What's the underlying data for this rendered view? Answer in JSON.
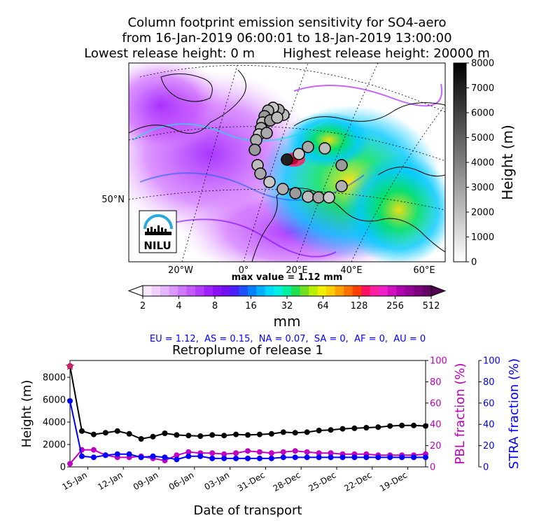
{
  "title": {
    "line1": "Column footprint emission sensitivity for SO4-aero",
    "line2": "from 16-Jan-2019 06:00:01 to 18-Jan-2019 13:00:00",
    "line3": "Lowest release height: 0 m       Highest release height: 20000 m"
  },
  "map": {
    "lon_labels": [
      "20°W",
      "0°",
      "20°E",
      "40°E",
      "60°E"
    ],
    "lat_labels": [
      "50°N"
    ],
    "logo_text": "NILU",
    "max_value": "max value = 1.12 mm"
  },
  "height_colorbar": {
    "label": "Height (m)",
    "ticks": [
      "0",
      "1000",
      "2000",
      "3000",
      "4000",
      "5000",
      "6000",
      "7000",
      "8000"
    ]
  },
  "emission_colorbar": {
    "label": "mm",
    "ticks": [
      "2",
      "4",
      "8",
      "16",
      "32",
      "64",
      "128",
      "256",
      "512"
    ]
  },
  "summary": "EU = 1.12,  AS = 0.15,  NA = 0.07,  SA = 0,  AF = 0,  AU = 0",
  "colors": {
    "height": "#000000",
    "pbl": "#c000c0",
    "stra": "#0000ff",
    "marker": "#d62070"
  },
  "chart_data": {
    "type": "line",
    "title": "Retroplume of release 1",
    "xlabel": "Date of transport",
    "ylabel": "Height (m)",
    "ylabel_right1": "PBL fraction (%)",
    "ylabel_right2": "STRA fraction (%)",
    "ylim": [
      0,
      9500
    ],
    "ylim_right": [
      0,
      100
    ],
    "x_tick_labels": [
      "15-Jan",
      "12-Jan",
      "09-Jan",
      "06-Jan",
      "03-Jan",
      "31-Dec",
      "28-Dec",
      "25-Dec",
      "22-Dec",
      "19-Dec"
    ],
    "x_tick_days_ago": [
      1,
      4,
      7,
      10,
      13,
      16,
      19,
      22,
      25,
      28
    ],
    "y_ticks": [
      "0",
      "2000",
      "4000",
      "6000",
      "8000"
    ],
    "y_ticks_right": [
      "0",
      "20",
      "40",
      "60",
      "80",
      "100"
    ],
    "series": [
      {
        "name": "Height",
        "axis": "left",
        "days_ago": [
          -0.5,
          0.5,
          1.5,
          2.5,
          3.5,
          4.5,
          5.5,
          6.5,
          7.5,
          8.5,
          9.5,
          10.5,
          11.5,
          12.5,
          13.5,
          14.5,
          15.5,
          16.5,
          17.5,
          18.5,
          19.5,
          20.5,
          21.5,
          22.5,
          23.5,
          24.5,
          25.5,
          26.5,
          27.5,
          28.5,
          29.5
        ],
        "values": [
          9000,
          3200,
          2900,
          3050,
          3200,
          2950,
          2500,
          2700,
          3000,
          2850,
          2800,
          2750,
          2850,
          2800,
          2900,
          2850,
          2900,
          2950,
          3100,
          3050,
          3100,
          3250,
          3300,
          3400,
          3450,
          3500,
          3550,
          3650,
          3700,
          3700,
          3650
        ]
      },
      {
        "name": "PBL fraction",
        "axis": "right",
        "days_ago": [
          -0.5,
          0.5,
          1.5,
          2.5,
          3.5,
          4.5,
          5.5,
          6.5,
          7.5,
          8.5,
          9.5,
          10.5,
          11.5,
          12.5,
          13.5,
          14.5,
          15.5,
          16.5,
          17.5,
          18.5,
          19.5,
          20.5,
          21.5,
          22.5,
          23.5,
          24.5,
          25.5,
          26.5,
          27.5,
          28.5,
          29.5
        ],
        "values": [
          3,
          16,
          16,
          11,
          9,
          9,
          10,
          8,
          6,
          11,
          14,
          13,
          13,
          12,
          13,
          15,
          14,
          13,
          14,
          15,
          14,
          13,
          13,
          12,
          12,
          12,
          11,
          11,
          11,
          11,
          12
        ]
      },
      {
        "name": "STRA fraction",
        "axis": "right",
        "days_ago": [
          -0.5,
          0.5,
          1.5,
          2.5,
          3.5,
          4.5,
          5.5,
          6.5,
          7.5,
          8.5,
          9.5,
          10.5,
          11.5,
          12.5,
          13.5,
          14.5,
          15.5,
          16.5,
          17.5,
          18.5,
          19.5,
          20.5,
          21.5,
          22.5,
          23.5,
          24.5,
          25.5,
          26.5,
          27.5,
          28.5,
          29.5
        ],
        "values": [
          62,
          10,
          9,
          11,
          12,
          12,
          9,
          10,
          9,
          7,
          10,
          10,
          8,
          8,
          8,
          8,
          8,
          8,
          9,
          9,
          9,
          9,
          9,
          9,
          9,
          9,
          9,
          9,
          9,
          9,
          9
        ]
      }
    ],
    "release_marker": {
      "days_ago": -0.5,
      "height": 9000
    }
  }
}
